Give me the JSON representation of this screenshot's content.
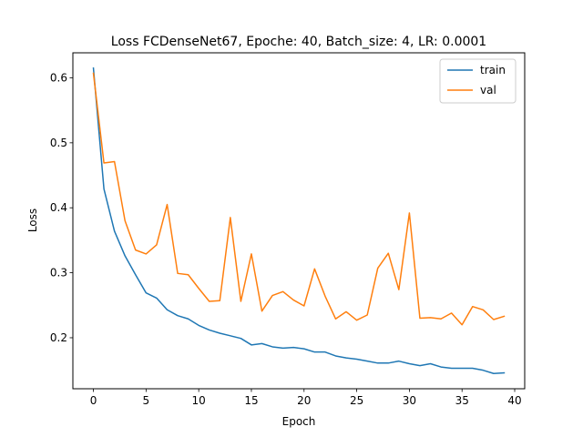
{
  "chart_data": {
    "type": "line",
    "title": "Loss FCDenseNet67, Epoche: 40, Batch_size: 4, LR: 0.0001",
    "xlabel": "Epoch",
    "ylabel": "Loss",
    "xlim": [
      -1.95,
      40.95
    ],
    "ylim": [
      0.1215,
      0.6385
    ],
    "xticks": [
      0,
      5,
      10,
      15,
      20,
      25,
      30,
      35,
      40
    ],
    "yticks": [
      0.2,
      0.3,
      0.4,
      0.5,
      0.6
    ],
    "xtick_labels": [
      "0",
      "5",
      "10",
      "15",
      "20",
      "25",
      "30",
      "35",
      "40"
    ],
    "ytick_labels": [
      "0.2",
      "0.3",
      "0.4",
      "0.5",
      "0.6"
    ],
    "grid": false,
    "legend_position": "top-right",
    "x": [
      0,
      1,
      2,
      3,
      4,
      5,
      6,
      7,
      8,
      9,
      10,
      11,
      12,
      13,
      14,
      15,
      16,
      17,
      18,
      19,
      20,
      21,
      22,
      23,
      24,
      25,
      26,
      27,
      28,
      29,
      30,
      31,
      32,
      33,
      34,
      35,
      36,
      37,
      38,
      39
    ],
    "series": [
      {
        "name": "train",
        "color": "#1f77b4",
        "values": [
          0.615,
          0.429,
          0.364,
          0.326,
          0.297,
          0.269,
          0.261,
          0.243,
          0.234,
          0.229,
          0.219,
          0.212,
          0.207,
          0.203,
          0.199,
          0.189,
          0.191,
          0.186,
          0.184,
          0.185,
          0.183,
          0.178,
          0.178,
          0.172,
          0.169,
          0.167,
          0.164,
          0.161,
          0.161,
          0.164,
          0.16,
          0.157,
          0.16,
          0.155,
          0.153,
          0.153,
          0.153,
          0.15,
          0.145,
          0.146
        ]
      },
      {
        "name": "val",
        "color": "#ff7f0e",
        "values": [
          0.607,
          0.469,
          0.471,
          0.38,
          0.335,
          0.329,
          0.343,
          0.405,
          0.299,
          0.297,
          0.276,
          0.256,
          0.257,
          0.385,
          0.256,
          0.329,
          0.241,
          0.265,
          0.271,
          0.258,
          0.249,
          0.306,
          0.264,
          0.229,
          0.24,
          0.227,
          0.235,
          0.307,
          0.33,
          0.274,
          0.392,
          0.23,
          0.231,
          0.229,
          0.238,
          0.22,
          0.248,
          0.243,
          0.228,
          0.233
        ]
      }
    ]
  }
}
